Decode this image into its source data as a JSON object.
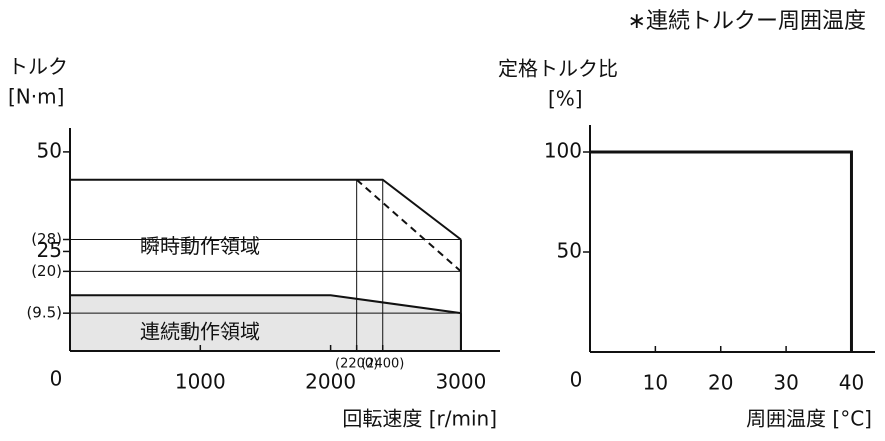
{
  "chart_data": [
    {
      "type": "area",
      "ylabel": "トルク",
      "yunit": "[N·m]",
      "xlabel": "回転速度 [r/min]",
      "xlim": [
        0,
        3300
      ],
      "ylim": [
        0,
        56
      ],
      "xticks": [
        0,
        1000,
        2000,
        {
          "value": 2200,
          "label": "(2200)"
        },
        {
          "value": 2400,
          "label": "(2400)"
        },
        3000
      ],
      "yticks": [
        {
          "value": 9.5,
          "label": "(9.5)"
        },
        {
          "value": 20,
          "label": "(20)"
        },
        25,
        {
          "value": 28,
          "label": "(28)"
        },
        50
      ],
      "series": [
        {
          "name": "瞬時動作領域",
          "x": [
            0,
            2400,
            3000
          ],
          "values": [
            43,
            43,
            28
          ],
          "color": "#ffffff"
        },
        {
          "x": [
            2200,
            3000
          ],
          "values": [
            43,
            20
          ],
          "dashed": true
        },
        {
          "name": "連続動作領域",
          "x": [
            0,
            2000,
            3000
          ],
          "values": [
            14,
            14,
            9.5
          ],
          "color": "#e6e6e6"
        }
      ]
    },
    {
      "type": "line",
      "title": "∗連続トルクー周囲温度",
      "ylabel": "定格トルク比",
      "yunit": "[%]",
      "xlabel": "周囲温度 [°C]",
      "xlim": [
        0,
        43.6
      ],
      "ylim": [
        0,
        113.5
      ],
      "xticks": [
        0,
        10,
        20,
        30,
        40
      ],
      "yticks": [
        50,
        100
      ],
      "series": [
        {
          "x": [
            0,
            40,
            40
          ],
          "values": [
            100,
            100,
            0
          ]
        }
      ]
    }
  ]
}
